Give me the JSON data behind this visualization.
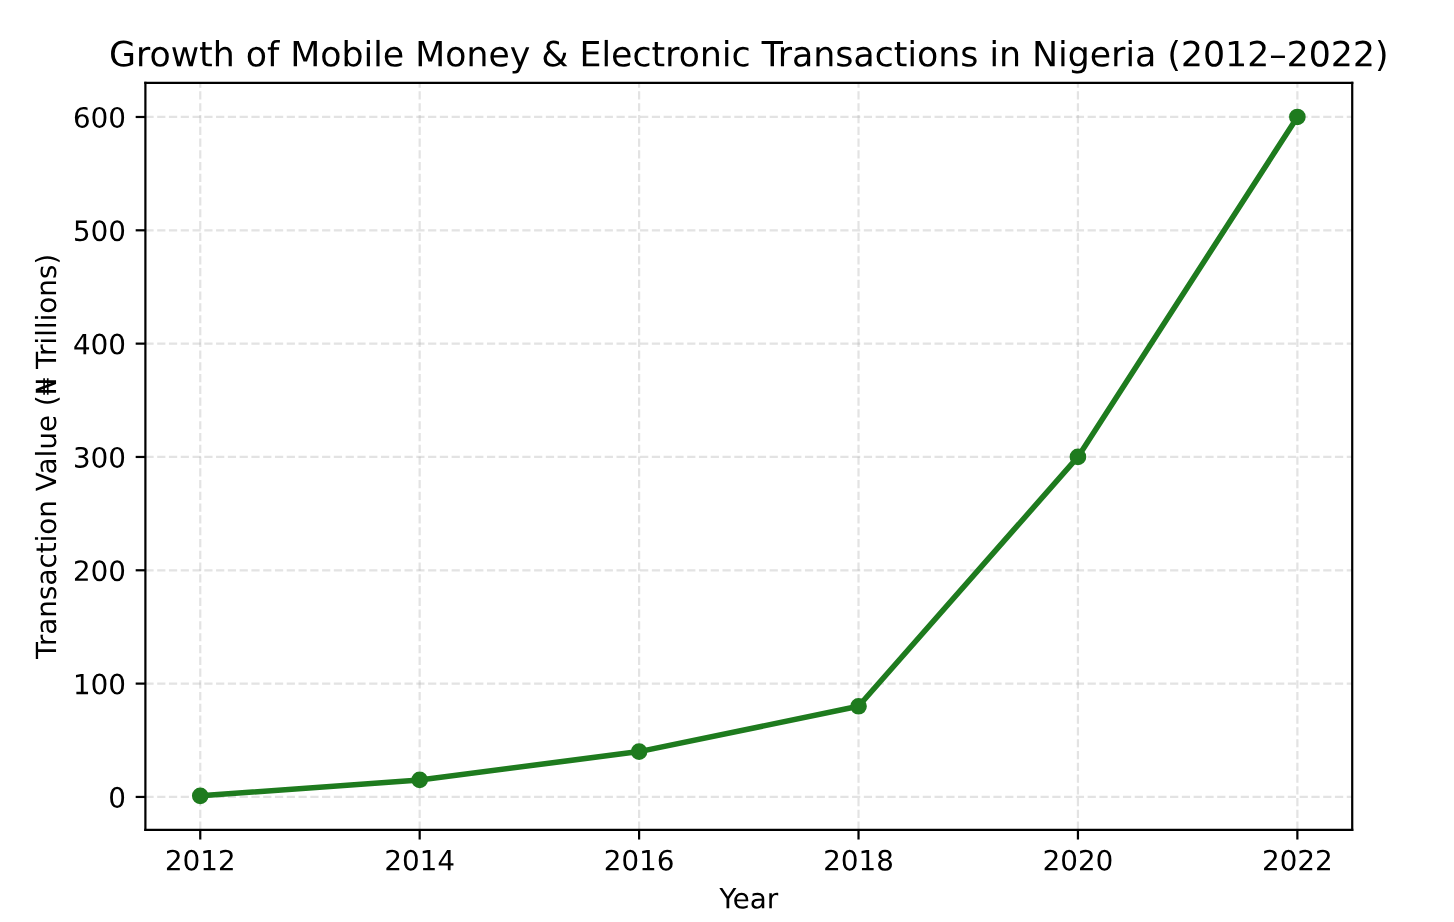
{
  "chart_data": {
    "type": "line",
    "title": "Growth of Mobile Money & Electronic Transactions in Nigeria (2012–2022)",
    "xlabel": "Year",
    "ylabel": "Transaction Value (₦ Trillions)",
    "x": [
      2012,
      2014,
      2016,
      2018,
      2020,
      2022
    ],
    "series": [
      {
        "color": "#1e7b1e",
        "values": [
          1,
          15,
          40,
          80,
          300,
          600
        ]
      }
    ],
    "xlim": [
      2011.5,
      2022.5
    ],
    "xticks": [
      2012,
      2014,
      2016,
      2018,
      2020,
      2022
    ],
    "ylim": [
      -29,
      630
    ],
    "yticks": [
      0,
      100,
      200,
      300,
      400,
      500,
      600
    ],
    "grid": true,
    "marker": "circle",
    "line_style": "solid"
  }
}
